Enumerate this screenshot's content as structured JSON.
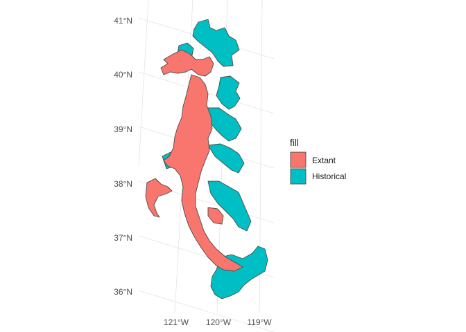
{
  "map": {
    "lat_labels": [
      "41°N",
      "40°N",
      "39°N",
      "38°N",
      "37°N",
      "36°N"
    ],
    "lon_labels": [
      "121°W",
      "120°W",
      "119°W"
    ]
  },
  "legend": {
    "title": "fill",
    "items": [
      {
        "label": "Extant",
        "color": "#F8766D"
      },
      {
        "label": "Historical",
        "color": "#00BFC4"
      }
    ]
  },
  "colors": {
    "extant": "#F8766D",
    "historical": "#00BFC4",
    "outline": "#4a4a4a",
    "grid": "#e3e3e3"
  }
}
